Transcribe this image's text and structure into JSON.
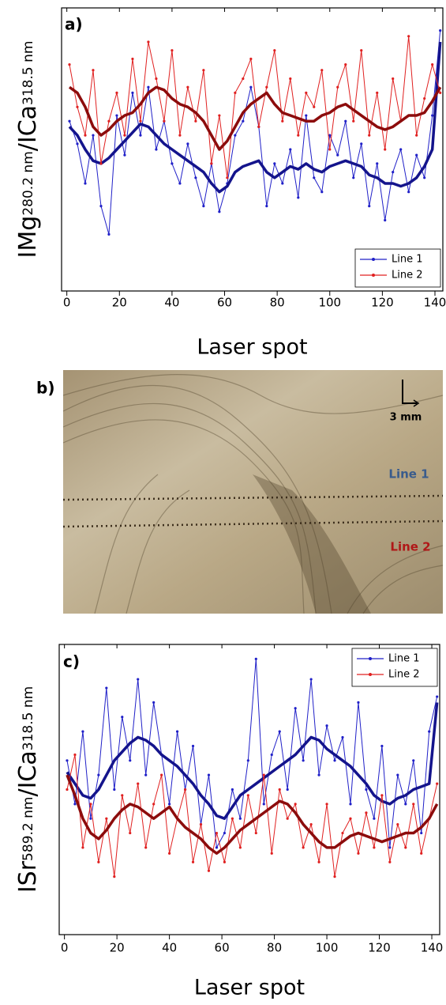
{
  "chart_data": [
    {
      "type": "line",
      "panel_label": "a)",
      "x_label": "Laser spot",
      "y_label": [
        {
          "text": "IMg"
        },
        {
          "text": "280.2 nm",
          "sub": true
        },
        {
          "text": "/ICa"
        },
        {
          "text": "318.5 nm",
          "sub": true
        }
      ],
      "x": [
        1,
        4,
        7,
        10,
        13,
        16,
        19,
        22,
        25,
        28,
        31,
        34,
        37,
        40,
        43,
        46,
        49,
        52,
        55,
        58,
        61,
        64,
        67,
        70,
        73,
        76,
        79,
        82,
        85,
        88,
        91,
        94,
        97,
        100,
        103,
        106,
        109,
        112,
        115,
        118,
        121,
        124,
        127,
        130,
        133,
        136,
        139,
        142
      ],
      "xlim": [
        -2,
        143
      ],
      "xticks": [
        0,
        20,
        40,
        60,
        80,
        100,
        120,
        140
      ],
      "ylim": [
        0,
        100
      ],
      "legend": "lower right",
      "series": [
        {
          "name": "Line 1",
          "color": "#2020c8",
          "trend_color": "#14148c",
          "values": [
            60,
            52,
            38,
            55,
            30,
            20,
            62,
            48,
            70,
            55,
            72,
            50,
            60,
            45,
            38,
            52,
            40,
            30,
            45,
            28,
            38,
            55,
            60,
            72,
            58,
            30,
            45,
            38,
            50,
            33,
            62,
            40,
            35,
            55,
            48,
            60,
            40,
            52,
            30,
            45,
            25,
            42,
            50,
            35,
            48,
            40,
            62,
            92
          ],
          "trend": [
            58,
            55,
            50,
            46,
            45,
            47,
            50,
            53,
            56,
            59,
            58,
            55,
            52,
            50,
            48,
            46,
            44,
            42,
            38,
            35,
            37,
            42,
            44,
            45,
            46,
            42,
            40,
            42,
            44,
            43,
            45,
            43,
            42,
            44,
            45,
            46,
            45,
            44,
            41,
            40,
            38,
            38,
            37,
            38,
            40,
            44,
            50,
            88
          ]
        },
        {
          "name": "Line 2",
          "color": "#e02020",
          "trend_color": "#8c0c0c",
          "values": [
            80,
            65,
            55,
            78,
            45,
            60,
            70,
            55,
            82,
            60,
            88,
            75,
            60,
            85,
            55,
            72,
            60,
            78,
            45,
            62,
            40,
            70,
            75,
            82,
            58,
            72,
            85,
            60,
            75,
            55,
            70,
            65,
            78,
            50,
            72,
            80,
            60,
            85,
            55,
            70,
            50,
            75,
            60,
            90,
            55,
            68,
            80,
            70
          ],
          "trend": [
            72,
            70,
            65,
            58,
            55,
            57,
            60,
            62,
            63,
            66,
            70,
            72,
            71,
            68,
            66,
            65,
            63,
            60,
            55,
            50,
            53,
            58,
            63,
            66,
            68,
            70,
            66,
            63,
            62,
            61,
            60,
            60,
            62,
            63,
            65,
            66,
            64,
            62,
            60,
            58,
            57,
            58,
            60,
            62,
            62,
            63,
            67,
            72
          ]
        }
      ]
    },
    {
      "type": "line",
      "panel_label": "c)",
      "x_label": "Laser spot",
      "y_label": [
        {
          "text": "ISr"
        },
        {
          "text": "589.2 nm",
          "sub": true
        },
        {
          "text": "/ICa"
        },
        {
          "text": "318.5 nm",
          "sub": true
        }
      ],
      "x": [
        1,
        4,
        7,
        10,
        13,
        16,
        19,
        22,
        25,
        28,
        31,
        34,
        37,
        40,
        43,
        46,
        49,
        52,
        55,
        58,
        61,
        64,
        67,
        70,
        73,
        76,
        79,
        82,
        85,
        88,
        91,
        94,
        97,
        100,
        103,
        106,
        109,
        112,
        115,
        118,
        121,
        124,
        127,
        130,
        133,
        136,
        139,
        142
      ],
      "xlim": [
        -2,
        143
      ],
      "xticks": [
        0,
        20,
        40,
        60,
        80,
        100,
        120,
        140
      ],
      "ylim": [
        0,
        100
      ],
      "legend": "upper right",
      "series": [
        {
          "name": "Line 1",
          "color": "#2020c8",
          "trend_color": "#14148c",
          "values": [
            60,
            45,
            70,
            40,
            55,
            85,
            50,
            75,
            60,
            88,
            55,
            80,
            62,
            45,
            70,
            50,
            65,
            38,
            55,
            30,
            35,
            50,
            40,
            60,
            95,
            45,
            62,
            70,
            50,
            78,
            60,
            88,
            55,
            72,
            60,
            68,
            45,
            80,
            50,
            40,
            65,
            30,
            55,
            45,
            60,
            35,
            70,
            82
          ],
          "trend": [
            56,
            52,
            48,
            47,
            50,
            55,
            60,
            63,
            66,
            68,
            67,
            65,
            62,
            60,
            58,
            55,
            52,
            48,
            45,
            41,
            40,
            44,
            48,
            50,
            52,
            54,
            56,
            58,
            60,
            62,
            65,
            68,
            67,
            64,
            62,
            60,
            58,
            55,
            52,
            48,
            46,
            45,
            47,
            48,
            50,
            51,
            52,
            80
          ]
        },
        {
          "name": "Line 2",
          "color": "#e02020",
          "trend_color": "#8c0c0c",
          "values": [
            50,
            62,
            30,
            45,
            25,
            40,
            20,
            48,
            35,
            52,
            30,
            45,
            55,
            28,
            40,
            50,
            25,
            38,
            22,
            35,
            25,
            40,
            30,
            48,
            35,
            55,
            28,
            50,
            40,
            45,
            30,
            38,
            25,
            45,
            20,
            35,
            40,
            28,
            42,
            30,
            48,
            25,
            38,
            30,
            45,
            28,
            40,
            52
          ],
          "trend": [
            55,
            48,
            40,
            35,
            33,
            36,
            40,
            43,
            45,
            44,
            42,
            40,
            42,
            44,
            40,
            37,
            35,
            33,
            30,
            28,
            30,
            33,
            36,
            38,
            40,
            42,
            44,
            46,
            45,
            42,
            38,
            35,
            32,
            30,
            30,
            32,
            34,
            35,
            34,
            33,
            32,
            33,
            34,
            35,
            35,
            37,
            40,
            45
          ]
        }
      ]
    }
  ],
  "photo": {
    "panel_label": "b)",
    "scale": "3 mm",
    "line_labels": [
      "Line 1",
      "Line 2"
    ]
  }
}
